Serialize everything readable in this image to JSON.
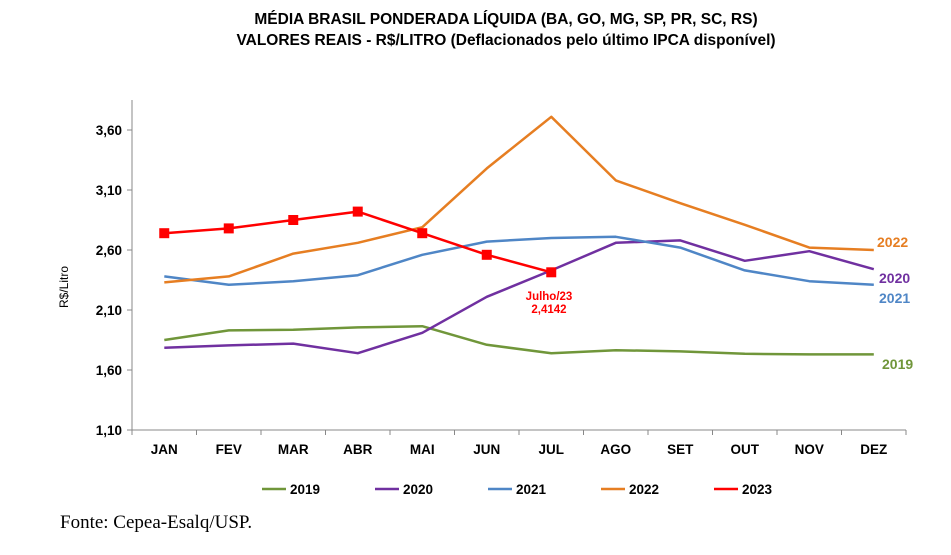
{
  "chart_data": {
    "type": "line",
    "title": "MÉDIA BRASIL PONDERADA LÍQUIDA (BA, GO, MG, SP, PR, SC, RS)",
    "subtitle": "VALORES REAIS - R$/LITRO (Deflacionados pelo último IPCA disponível)",
    "xlabel": "",
    "ylabel": "R$/Litro",
    "categories": [
      "JAN",
      "FEV",
      "MAR",
      "ABR",
      "MAI",
      "JUN",
      "JUL",
      "AGO",
      "SET",
      "OUT",
      "NOV",
      "DEZ"
    ],
    "ylim": [
      1.1,
      3.85
    ],
    "yticks": [
      1.1,
      1.6,
      2.1,
      2.6,
      3.1,
      3.6
    ],
    "ytick_labels": [
      "1,10",
      "1,60",
      "2,10",
      "2,60",
      "3,10",
      "3,60"
    ],
    "series": [
      {
        "name": "2019",
        "color": "#70963a",
        "values": [
          1.85,
          1.93,
          1.935,
          1.955,
          1.965,
          1.81,
          1.74,
          1.765,
          1.755,
          1.735,
          1.73,
          1.73
        ]
      },
      {
        "name": "2020",
        "color": "#7030a0",
        "values": [
          1.785,
          1.805,
          1.82,
          1.74,
          1.91,
          2.21,
          2.43,
          2.66,
          2.68,
          2.51,
          2.59,
          2.44
        ]
      },
      {
        "name": "2021",
        "color": "#4f86c6",
        "values": [
          2.38,
          2.31,
          2.34,
          2.39,
          2.56,
          2.67,
          2.7,
          2.71,
          2.62,
          2.43,
          2.34,
          2.31
        ]
      },
      {
        "name": "2022",
        "color": "#e67e22",
        "values": [
          2.33,
          2.38,
          2.57,
          2.66,
          2.79,
          3.28,
          3.71,
          3.18,
          2.99,
          2.81,
          2.62,
          2.6
        ]
      },
      {
        "name": "2023",
        "color": "#ff0000",
        "values": [
          2.74,
          2.78,
          2.85,
          2.92,
          2.74,
          2.56,
          2.4142,
          null,
          null,
          null,
          null,
          null
        ]
      }
    ],
    "annotation": {
      "series": "2023",
      "category": "JUL",
      "line1": "Julho/23",
      "line2": "2,4142"
    },
    "end_labels": [
      "2022",
      "2020",
      "2021",
      "2019"
    ],
    "legend": {
      "placement": "bottom",
      "entries": [
        "2019",
        "2020",
        "2021",
        "2022",
        "2023"
      ]
    }
  },
  "source": "Fonte: Cepea-Esalq/USP."
}
